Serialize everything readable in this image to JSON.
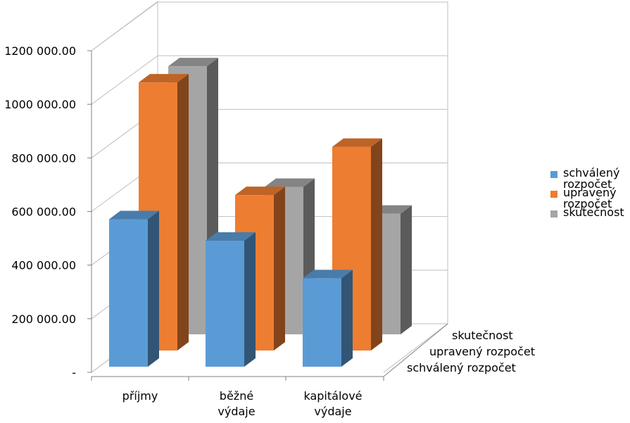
{
  "chart_data": {
    "type": "bar",
    "categories": [
      "příjmy",
      "běžné\nvýdaje",
      "kapitálové\nvýdaje"
    ],
    "series": [
      {
        "name": "schválený rozpočet",
        "values": [
          550000,
          470000,
          330000
        ]
      },
      {
        "name": "upravený rozpočet",
        "values": [
          1000000,
          580000,
          760000
        ]
      },
      {
        "name": "skutečnost",
        "values": [
          1000000,
          550000,
          450000
        ]
      }
    ],
    "y_ticks": [
      "-",
      "200 000.00",
      "400 000.00",
      "600 000.00",
      "800 000.00",
      "1000 000.00",
      "1200 000.00"
    ],
    "ylim": [
      0,
      1200000
    ],
    "grid": true,
    "legend_position": "right",
    "colors": {
      "schválený rozpočet": "#5b9bd5",
      "upravený rozpočet": "#ed7d31",
      "skutečnost": "#a5a5a5"
    }
  }
}
